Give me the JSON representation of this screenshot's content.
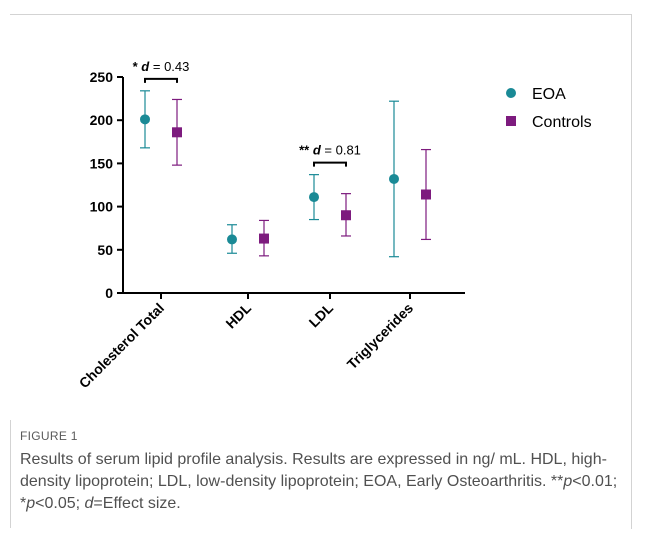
{
  "chart_data": {
    "type": "scatter",
    "categories": [
      "Cholesterol Total",
      "HDL",
      "LDL",
      "Triglycerides"
    ],
    "ylim": [
      0,
      250
    ],
    "yticks": [
      "0",
      "50",
      "100",
      "150",
      "200",
      "250"
    ],
    "legend_position": "top-right",
    "grid": false,
    "series": [
      {
        "name": "EOA",
        "color": "#1a8a96",
        "marker": "circle",
        "values": [
          201,
          62,
          111,
          132
        ],
        "error_low": [
          168,
          46,
          85,
          42
        ],
        "error_high": [
          234,
          79,
          137,
          222
        ]
      },
      {
        "name": "Controls",
        "color": "#7d1b7e",
        "marker": "square",
        "values": [
          186,
          63,
          90,
          114
        ],
        "error_low": [
          148,
          43,
          66,
          62
        ],
        "error_high": [
          224,
          84,
          115,
          166
        ]
      }
    ],
    "annotations": [
      {
        "category": 0,
        "stars": "*",
        "d_label": "d",
        "text": " = 0.43"
      },
      {
        "category": 2,
        "stars": "**",
        "d_label": "d",
        "text": " = 0.81"
      }
    ]
  },
  "figure": {
    "label": "FIGURE 1",
    "caption": {
      "part1": "Results of serum lipid profile analysis. Results are expressed in ng/ mL. HDL, high-density lipoprotein; LDL, low-density lipoprotein; EOA, Early Osteoarthritis. **",
      "p1": "p",
      "part2": "<0.01; *",
      "p2": "p",
      "part3": "<0.05; ",
      "d": "d",
      "part4": "=Effect size."
    }
  }
}
